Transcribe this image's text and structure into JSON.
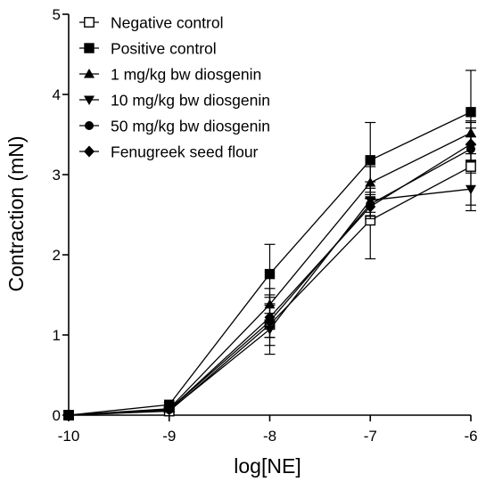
{
  "chart_data": {
    "type": "line",
    "title": "",
    "xlabel": "log[NE]",
    "ylabel": "Contraction (mN)",
    "xlim": [
      -10,
      -6
    ],
    "ylim": [
      0,
      5
    ],
    "x_ticks": [
      "-10",
      "-9",
      "-8",
      "-7",
      "-6"
    ],
    "y_ticks": [
      "0",
      "1",
      "2",
      "3",
      "4",
      "5"
    ],
    "x": [
      -10,
      -9,
      -8,
      -7,
      -6
    ],
    "grid": false,
    "legend_position": "top-left",
    "series": [
      {
        "name": "Negative control",
        "marker": "square-open",
        "values": [
          0,
          0.05,
          1.13,
          2.43,
          3.1
        ],
        "error": [
          0,
          0.02,
          0.37,
          0.48,
          0.55
        ]
      },
      {
        "name": "Positive control",
        "marker": "square-filled",
        "values": [
          0,
          0.13,
          1.76,
          3.18,
          3.78
        ],
        "error": [
          0,
          0.03,
          0.37,
          0.47,
          0.52
        ]
      },
      {
        "name": "1 mg/kg bw diosgenin",
        "marker": "triangle-up",
        "values": [
          0,
          0.08,
          1.38,
          2.9,
          3.52
        ],
        "error": [
          0,
          0.03,
          0.2,
          0.2,
          0.15
        ]
      },
      {
        "name": "10 mg/kg bw diosgenin",
        "marker": "triangle-down",
        "values": [
          0,
          0.06,
          1.07,
          2.68,
          2.82
        ],
        "error": [
          0,
          0.02,
          0.2,
          0.15,
          0.2
        ]
      },
      {
        "name": "50 mg/kg bw diosgenin",
        "marker": "circle",
        "values": [
          0,
          0.07,
          1.17,
          2.63,
          3.32
        ],
        "error": [
          0,
          0.02,
          0.2,
          0.15,
          0.15
        ]
      },
      {
        "name": "Fenugreek seed flour",
        "marker": "diamond",
        "values": [
          0,
          0.07,
          1.22,
          2.6,
          3.38
        ],
        "error": [
          0,
          0.02,
          0.25,
          0.15,
          0.2
        ]
      }
    ]
  }
}
